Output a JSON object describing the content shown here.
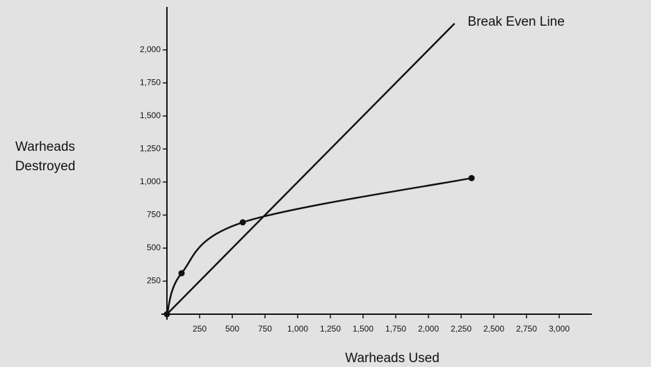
{
  "chart_data": {
    "type": "line",
    "xlabel": "Warheads Used",
    "ylabel": [
      "Warheads",
      "Destroyed"
    ],
    "annotations": [
      {
        "text": "Break Even Line",
        "x": 2300,
        "y": 2210
      }
    ],
    "xlim": [
      0,
      3250
    ],
    "ylim": [
      0,
      2325
    ],
    "xticks": [
      250,
      500,
      750,
      {
        "value": 1000,
        "label": "1,000"
      },
      {
        "value": 1250,
        "label": "1,250"
      },
      {
        "value": 1500,
        "label": "1,500"
      },
      {
        "value": 1750,
        "label": "1,750"
      },
      {
        "value": 2000,
        "label": "2,000"
      },
      {
        "value": 2250,
        "label": "2,250"
      },
      {
        "value": 2500,
        "label": "2,500"
      },
      {
        "value": 2750,
        "label": "2,750"
      },
      {
        "value": 3000,
        "label": "3,000"
      }
    ],
    "yticks": [
      250,
      500,
      750,
      {
        "value": 1000,
        "label": "1,000"
      },
      {
        "value": 1250,
        "label": "1,250"
      },
      {
        "value": 1500,
        "label": "1,500"
      },
      {
        "value": 1750,
        "label": "1,750"
      },
      {
        "value": 2000,
        "label": "2,000"
      }
    ],
    "grid": false,
    "series": [
      {
        "color": "#111111",
        "smooth": false,
        "markers": false,
        "x": [
          0,
          2200
        ],
        "values": [
          0,
          2200
        ]
      },
      {
        "color": "#111111",
        "smooth": true,
        "markers": true,
        "x": [
          0,
          112,
          580,
          2330
        ],
        "values": [
          0,
          310,
          695,
          1030
        ]
      }
    ]
  }
}
